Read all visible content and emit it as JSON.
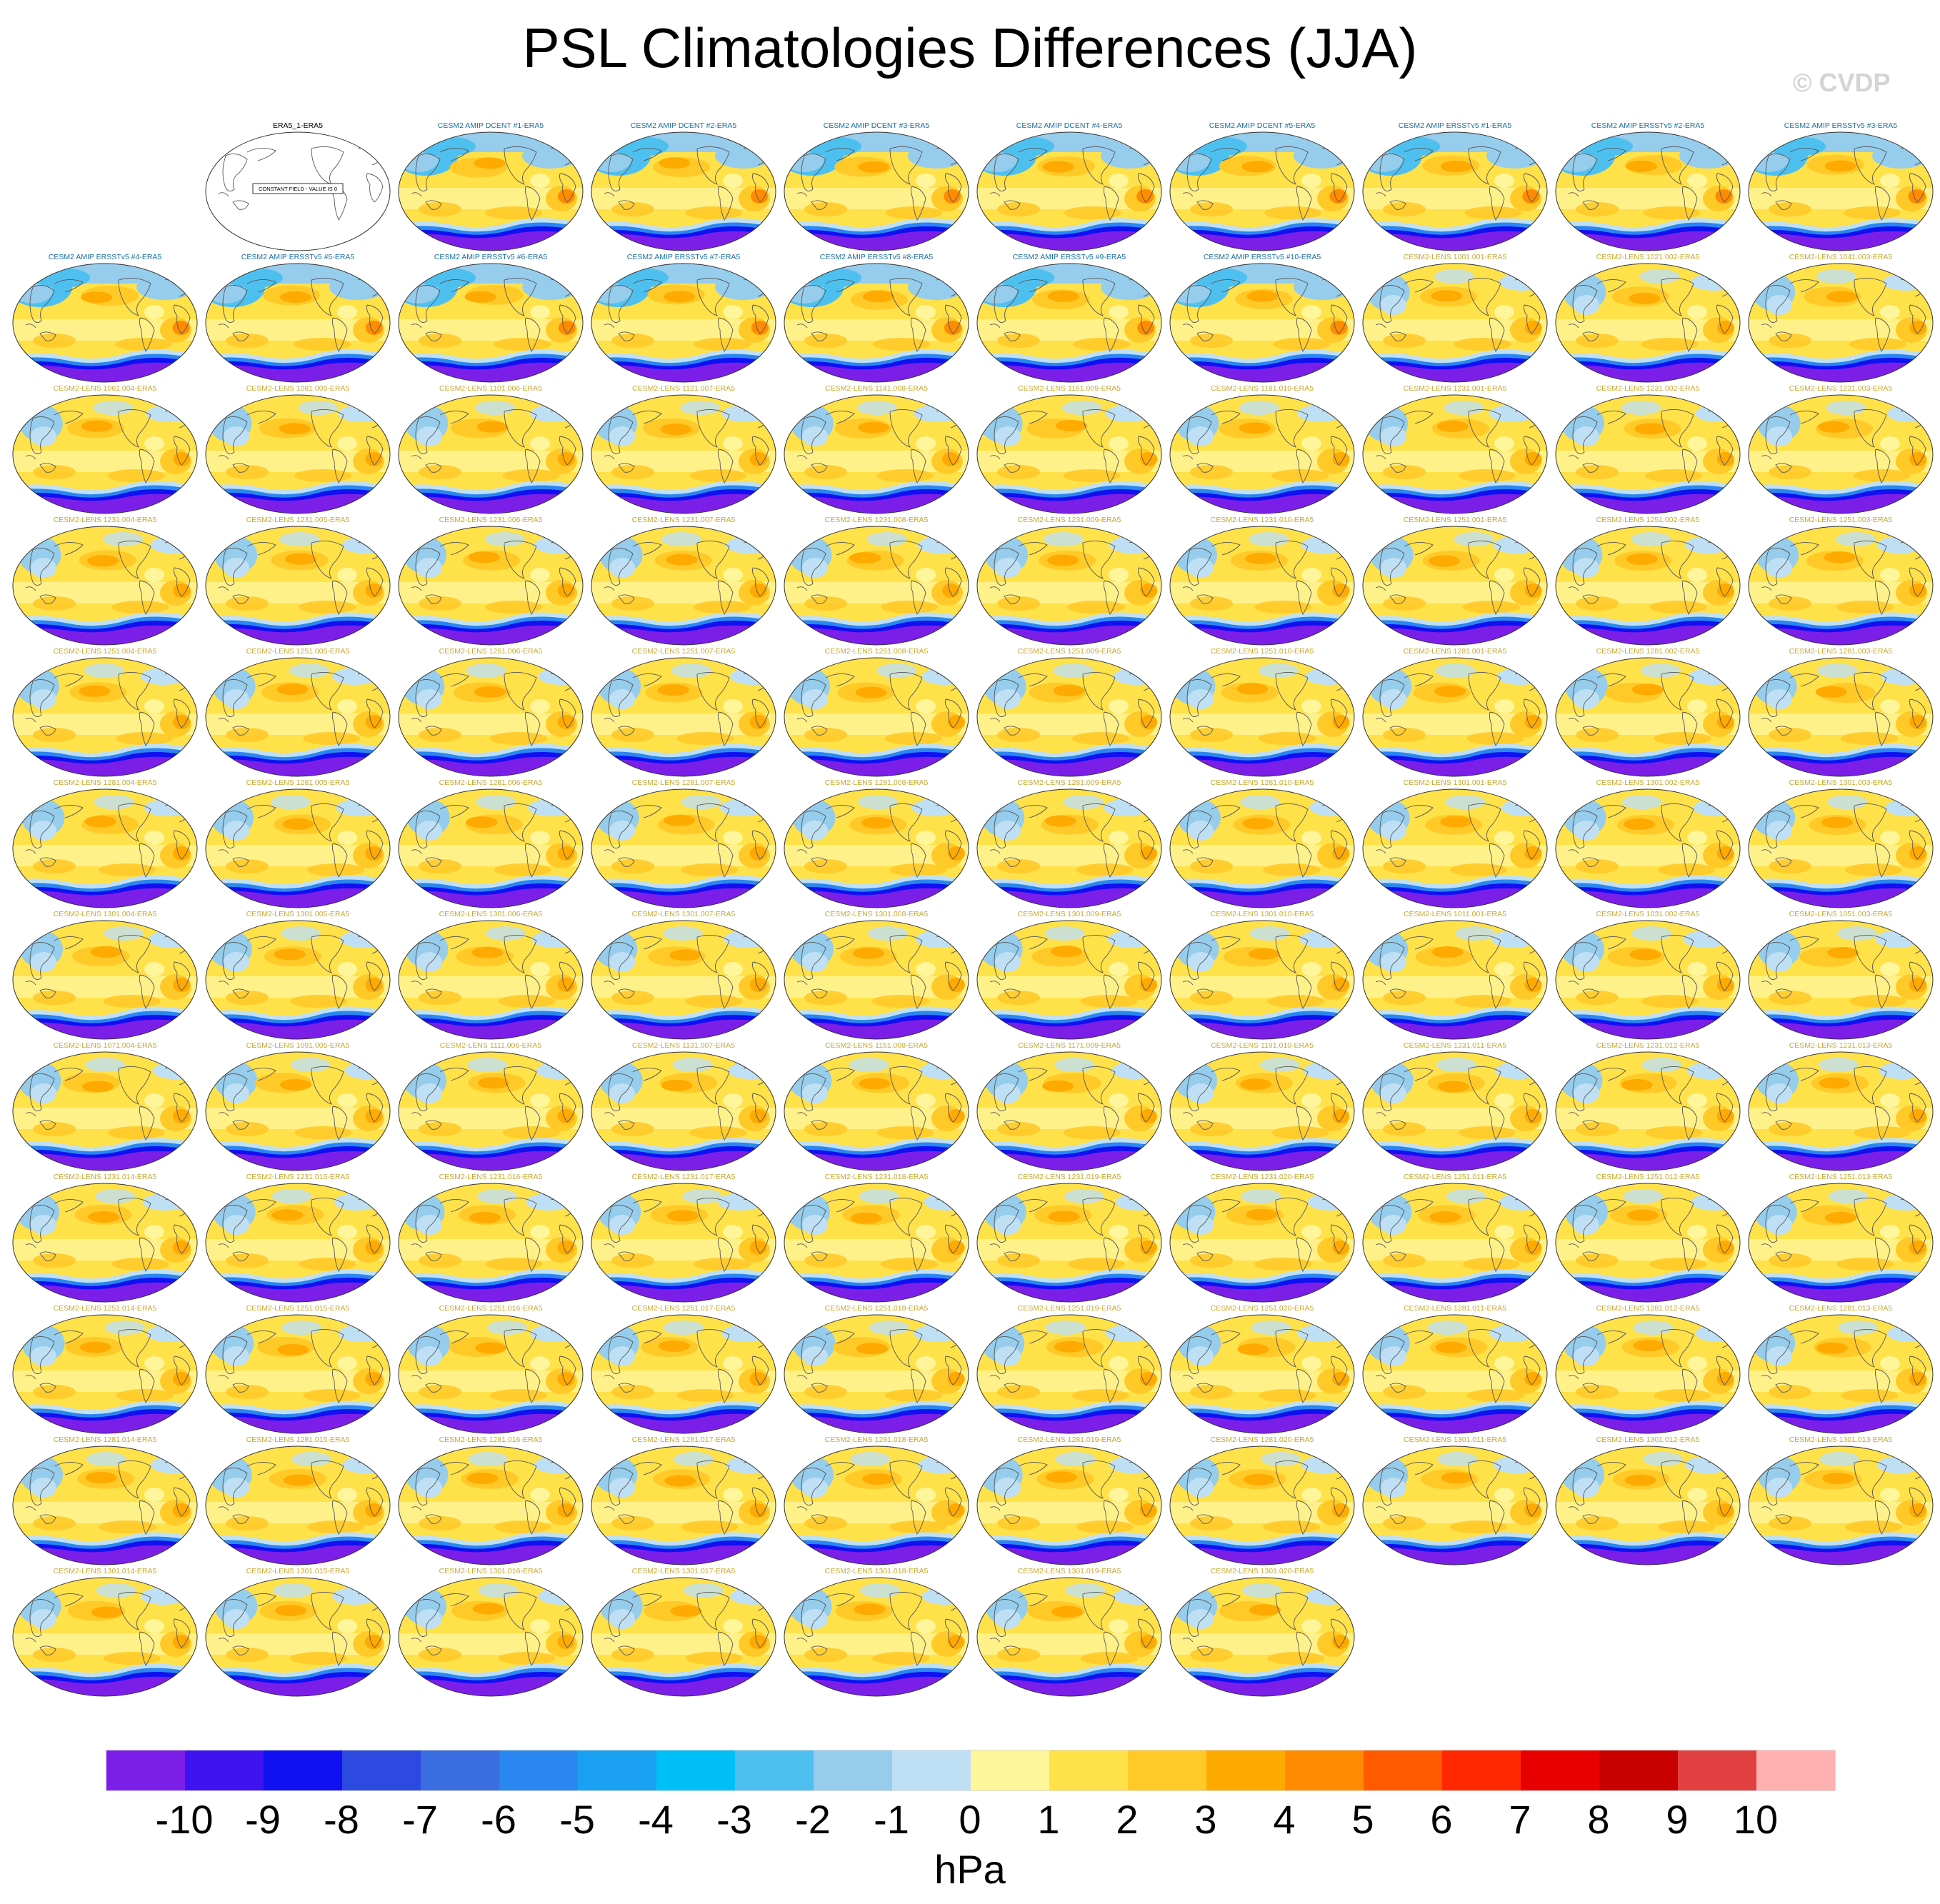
{
  "title": "PSL Climatologies Differences (JJA)",
  "watermark": "© CVDP",
  "colorbar": {
    "units": "hPa",
    "colors": [
      "#7b1fe8",
      "#3d13f0",
      "#1010f0",
      "#2d4ae0",
      "#3a6ee0",
      "#2a86f0",
      "#1aa0f0",
      "#00c0f8",
      "#4ec0f0",
      "#96ccec",
      "#bfe0f4",
      "#fff59a",
      "#ffe14a",
      "#ffca28",
      "#ffaa00",
      "#ff8c00",
      "#ff5a00",
      "#ff2800",
      "#e80000",
      "#c80000",
      "#e04040",
      "#ffb0b0"
    ],
    "ticks": [
      "-10",
      "-9",
      "-8",
      "-7",
      "-6",
      "-5",
      "-4",
      "-3",
      "-2",
      "-1",
      "0",
      "1",
      "2",
      "3",
      "4",
      "5",
      "6",
      "7",
      "8",
      "9",
      "10"
    ]
  },
  "title_colors": {
    "obs": "#000000",
    "amip": "#1a6fa0",
    "lens": "#c8a832"
  },
  "panels": [
    {
      "label": "ERA5_1-ERA5",
      "kind": "obs",
      "constant_label": "CONSTANT FIELD - VALUE IS 0"
    },
    {
      "label": "CESM2 AMIP DCENT #1-ERA5",
      "kind": "amip"
    },
    {
      "label": "CESM2 AMIP DCENT #2-ERA5",
      "kind": "amip"
    },
    {
      "label": "CESM2 AMIP DCENT #3-ERA5",
      "kind": "amip"
    },
    {
      "label": "CESM2 AMIP DCENT #4-ERA5",
      "kind": "amip"
    },
    {
      "label": "CESM2 AMIP DCENT #5-ERA5",
      "kind": "amip"
    },
    {
      "label": "CESM2 AMIP ERSSTv5 #1-ERA5",
      "kind": "amip"
    },
    {
      "label": "CESM2 AMIP ERSSTv5 #2-ERA5",
      "kind": "amip"
    },
    {
      "label": "CESM2 AMIP ERSSTv5 #3-ERA5",
      "kind": "amip"
    },
    {
      "label": "CESM2 AMIP ERSSTv5 #4-ERA5",
      "kind": "amip"
    },
    {
      "label": "CESM2 AMIP ERSSTv5 #5-ERA5",
      "kind": "amip"
    },
    {
      "label": "CESM2 AMIP ERSSTv5 #6-ERA5",
      "kind": "amip"
    },
    {
      "label": "CESM2 AMIP ERSSTv5 #7-ERA5",
      "kind": "amip"
    },
    {
      "label": "CESM2 AMIP ERSSTv5 #8-ERA5",
      "kind": "amip"
    },
    {
      "label": "CESM2 AMIP ERSSTv5 #9-ERA5",
      "kind": "amip"
    },
    {
      "label": "CESM2 AMIP ERSSTv5 #10-ERA5",
      "kind": "amip"
    },
    {
      "label": "CESM2-LENS 1001.001-ERA5",
      "kind": "lens"
    },
    {
      "label": "CESM2-LENS 1021.002-ERA5",
      "kind": "lens"
    },
    {
      "label": "CESM2-LENS 1041.003-ERA5",
      "kind": "lens"
    },
    {
      "label": "CESM2-LENS 1061.004-ERA5",
      "kind": "lens"
    },
    {
      "label": "CESM2-LENS 1081.005-ERA5",
      "kind": "lens"
    },
    {
      "label": "CESM2-LENS 1101.006-ERA5",
      "kind": "lens"
    },
    {
      "label": "CESM2-LENS 1121.007-ERA5",
      "kind": "lens"
    },
    {
      "label": "CESM2-LENS 1141.008-ERA5",
      "kind": "lens"
    },
    {
      "label": "CESM2-LENS 1161.009-ERA5",
      "kind": "lens"
    },
    {
      "label": "CESM2-LENS 1181.010-ERA5",
      "kind": "lens"
    },
    {
      "label": "CESM2-LENS 1231.001-ERA5",
      "kind": "lens"
    },
    {
      "label": "CESM2-LENS 1231.002-ERA5",
      "kind": "lens"
    },
    {
      "label": "CESM2-LENS 1231.003-ERA5",
      "kind": "lens"
    },
    {
      "label": "CESM2-LENS 1231.004-ERA5",
      "kind": "lens"
    },
    {
      "label": "CESM2-LENS 1231.005-ERA5",
      "kind": "lens"
    },
    {
      "label": "CESM2-LENS 1231.006-ERA5",
      "kind": "lens"
    },
    {
      "label": "CESM2-LENS 1231.007-ERA5",
      "kind": "lens"
    },
    {
      "label": "CESM2-LENS 1231.008-ERA5",
      "kind": "lens"
    },
    {
      "label": "CESM2-LENS 1231.009-ERA5",
      "kind": "lens"
    },
    {
      "label": "CESM2-LENS 1231.010-ERA5",
      "kind": "lens"
    },
    {
      "label": "CESM2-LENS 1251.001-ERA5",
      "kind": "lens"
    },
    {
      "label": "CESM2-LENS 1251.002-ERA5",
      "kind": "lens"
    },
    {
      "label": "CESM2-LENS 1251.003-ERA5",
      "kind": "lens"
    },
    {
      "label": "CESM2-LENS 1251.004-ERA5",
      "kind": "lens"
    },
    {
      "label": "CESM2-LENS 1251.005-ERA5",
      "kind": "lens"
    },
    {
      "label": "CESM2-LENS 1251.006-ERA5",
      "kind": "lens"
    },
    {
      "label": "CESM2-LENS 1251.007-ERA5",
      "kind": "lens"
    },
    {
      "label": "CESM2-LENS 1251.008-ERA5",
      "kind": "lens"
    },
    {
      "label": "CESM2-LENS 1251.009-ERA5",
      "kind": "lens"
    },
    {
      "label": "CESM2-LENS 1251.010-ERA5",
      "kind": "lens"
    },
    {
      "label": "CESM2-LENS 1281.001-ERA5",
      "kind": "lens"
    },
    {
      "label": "CESM2-LENS 1281.002-ERA5",
      "kind": "lens"
    },
    {
      "label": "CESM2-LENS 1281.003-ERA5",
      "kind": "lens"
    },
    {
      "label": "CESM2-LENS 1281.004-ERA5",
      "kind": "lens"
    },
    {
      "label": "CESM2-LENS 1281.005-ERA5",
      "kind": "lens"
    },
    {
      "label": "CESM2-LENS 1281.006-ERA5",
      "kind": "lens"
    },
    {
      "label": "CESM2-LENS 1281.007-ERA5",
      "kind": "lens"
    },
    {
      "label": "CESM2-LENS 1281.008-ERA5",
      "kind": "lens"
    },
    {
      "label": "CESM2-LENS 1281.009-ERA5",
      "kind": "lens"
    },
    {
      "label": "CESM2-LENS 1281.010-ERA5",
      "kind": "lens"
    },
    {
      "label": "CESM2-LENS 1301.001-ERA5",
      "kind": "lens"
    },
    {
      "label": "CESM2-LENS 1301.002-ERA5",
      "kind": "lens"
    },
    {
      "label": "CESM2-LENS 1301.003-ERA5",
      "kind": "lens"
    },
    {
      "label": "CESM2-LENS 1301.004-ERA5",
      "kind": "lens"
    },
    {
      "label": "CESM2-LENS 1301.005-ERA5",
      "kind": "lens"
    },
    {
      "label": "CESM2-LENS 1301.006-ERA5",
      "kind": "lens"
    },
    {
      "label": "CESM2-LENS 1301.007-ERA5",
      "kind": "lens"
    },
    {
      "label": "CESM2-LENS 1301.008-ERA5",
      "kind": "lens"
    },
    {
      "label": "CESM2-LENS 1301.009-ERA5",
      "kind": "lens"
    },
    {
      "label": "CESM2-LENS 1301.010-ERA5",
      "kind": "lens"
    },
    {
      "label": "CESM2-LENS 1011.001-ERA5",
      "kind": "lens"
    },
    {
      "label": "CESM2-LENS 1031.002-ERA5",
      "kind": "lens"
    },
    {
      "label": "CESM2-LENS 1051.003-ERA5",
      "kind": "lens"
    },
    {
      "label": "CESM2-LENS 1071.004-ERA5",
      "kind": "lens"
    },
    {
      "label": "CESM2-LENS 1091.005-ERA5",
      "kind": "lens"
    },
    {
      "label": "CESM2-LENS 1111.006-ERA5",
      "kind": "lens"
    },
    {
      "label": "CESM2-LENS 1131.007-ERA5",
      "kind": "lens"
    },
    {
      "label": "CESM2-LENS 1151.008-ERA5",
      "kind": "lens"
    },
    {
      "label": "CESM2-LENS 1171.009-ERA5",
      "kind": "lens"
    },
    {
      "label": "CESM2-LENS 1191.010-ERA5",
      "kind": "lens"
    },
    {
      "label": "CESM2-LENS 1231.011-ERA5",
      "kind": "lens"
    },
    {
      "label": "CESM2-LENS 1231.012-ERA5",
      "kind": "lens"
    },
    {
      "label": "CESM2-LENS 1231.013-ERA5",
      "kind": "lens"
    },
    {
      "label": "CESM2-LENS 1231.014-ERA5",
      "kind": "lens"
    },
    {
      "label": "CESM2-LENS 1231.015-ERA5",
      "kind": "lens"
    },
    {
      "label": "CESM2-LENS 1231.016-ERA5",
      "kind": "lens"
    },
    {
      "label": "CESM2-LENS 1231.017-ERA5",
      "kind": "lens"
    },
    {
      "label": "CESM2-LENS 1231.018-ERA5",
      "kind": "lens"
    },
    {
      "label": "CESM2-LENS 1231.019-ERA5",
      "kind": "lens"
    },
    {
      "label": "CESM2-LENS 1231.020-ERA5",
      "kind": "lens"
    },
    {
      "label": "CESM2-LENS 1251.011-ERA5",
      "kind": "lens"
    },
    {
      "label": "CESM2-LENS 1251.012-ERA5",
      "kind": "lens"
    },
    {
      "label": "CESM2-LENS 1251.013-ERA5",
      "kind": "lens"
    },
    {
      "label": "CESM2-LENS 1251.014-ERA5",
      "kind": "lens"
    },
    {
      "label": "CESM2-LENS 1251.015-ERA5",
      "kind": "lens"
    },
    {
      "label": "CESM2-LENS 1251.016-ERA5",
      "kind": "lens"
    },
    {
      "label": "CESM2-LENS 1251.017-ERA5",
      "kind": "lens"
    },
    {
      "label": "CESM2-LENS 1251.018-ERA5",
      "kind": "lens"
    },
    {
      "label": "CESM2-LENS 1251.019-ERA5",
      "kind": "lens"
    },
    {
      "label": "CESM2-LENS 1251.020-ERA5",
      "kind": "lens"
    },
    {
      "label": "CESM2-LENS 1281.011-ERA5",
      "kind": "lens"
    },
    {
      "label": "CESM2-LENS 1281.012-ERA5",
      "kind": "lens"
    },
    {
      "label": "CESM2-LENS 1281.013-ERA5",
      "kind": "lens"
    },
    {
      "label": "CESM2-LENS 1281.014-ERA5",
      "kind": "lens"
    },
    {
      "label": "CESM2-LENS 1281.015-ERA5",
      "kind": "lens"
    },
    {
      "label": "CESM2-LENS 1281.016-ERA5",
      "kind": "lens"
    },
    {
      "label": "CESM2-LENS 1281.017-ERA5",
      "kind": "lens"
    },
    {
      "label": "CESM2-LENS 1281.018-ERA5",
      "kind": "lens"
    },
    {
      "label": "CESM2-LENS 1281.019-ERA5",
      "kind": "lens"
    },
    {
      "label": "CESM2-LENS 1281.020-ERA5",
      "kind": "lens"
    },
    {
      "label": "CESM2-LENS 1301.011-ERA5",
      "kind": "lens"
    },
    {
      "label": "CESM2-LENS 1301.012-ERA5",
      "kind": "lens"
    },
    {
      "label": "CESM2-LENS 1301.013-ERA5",
      "kind": "lens"
    },
    {
      "label": "CESM2-LENS 1301.014-ERA5",
      "kind": "lens"
    },
    {
      "label": "CESM2-LENS 1301.015-ERA5",
      "kind": "lens"
    },
    {
      "label": "CESM2-LENS 1301.016-ERA5",
      "kind": "lens"
    },
    {
      "label": "CESM2-LENS 1301.017-ERA5",
      "kind": "lens"
    },
    {
      "label": "CESM2-LENS 1301.018-ERA5",
      "kind": "lens"
    },
    {
      "label": "CESM2-LENS 1301.019-ERA5",
      "kind": "lens"
    },
    {
      "label": "CESM2-LENS 1301.020-ERA5",
      "kind": "lens"
    }
  ]
}
